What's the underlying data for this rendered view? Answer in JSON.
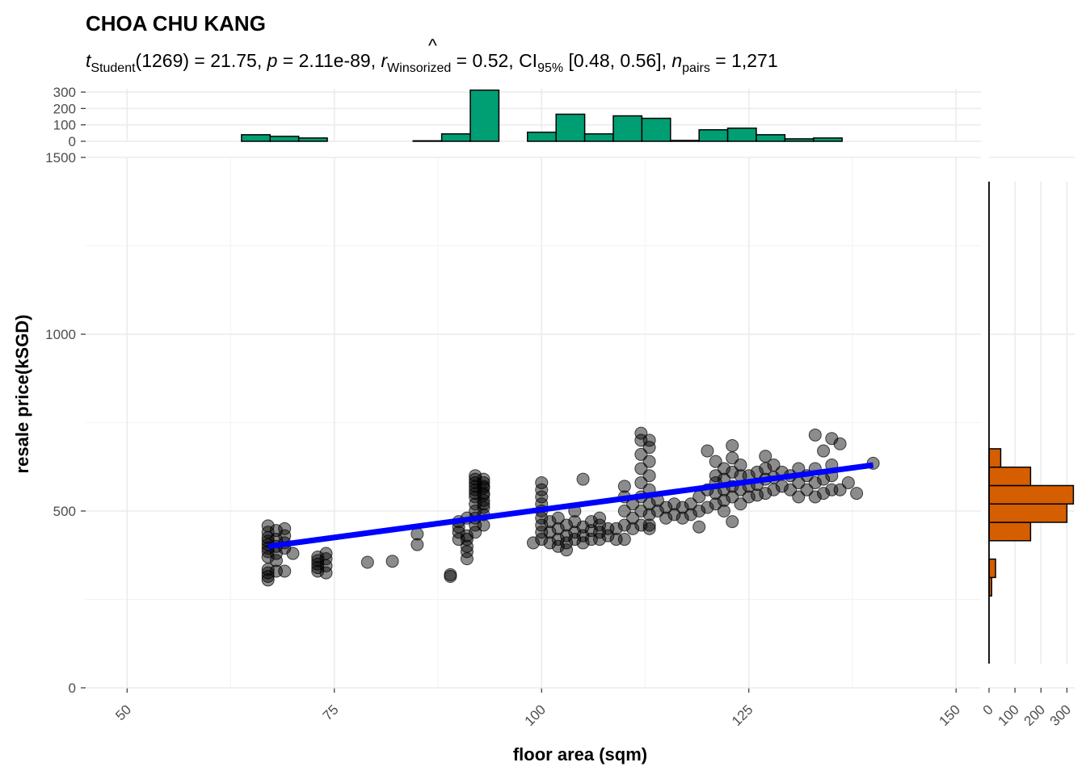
{
  "chart_data": {
    "type": "scatter",
    "title": "CHOA CHU KANG",
    "subtitle": {
      "t_label": "t",
      "t_sub": "Student",
      "df": "(1269)",
      "t_val": "21.75",
      "p_label": "p",
      "p_val": "2.11e-89",
      "r_label": "r",
      "r_sub": "Winsorized",
      "r_val": "0.52",
      "ci_label": "CI",
      "ci_sub": "95%",
      "ci_val": "[0.48, 0.56]",
      "n_label": "n",
      "n_sub": "pairs",
      "n_val": "1,271"
    },
    "xlabel": "floor area (sqm)",
    "ylabel": "resale price(kSGD)",
    "xlim": [
      45,
      153
    ],
    "ylim": [
      0,
      1500
    ],
    "x_ticks": [
      "50",
      "75",
      "100",
      "125",
      "150"
    ],
    "x_tick_values": [
      50,
      75,
      100,
      125,
      150
    ],
    "y_ticks": [
      "0",
      "500",
      "1000",
      "1500"
    ],
    "y_tick_values": [
      0,
      500,
      1000,
      1500
    ],
    "grid": true,
    "point_color": "#000000",
    "regression_line": {
      "color": "#0000ff",
      "x": [
        67,
        140
      ],
      "y": [
        400,
        630
      ]
    },
    "points": [
      {
        "x": 67,
        "y": 305
      },
      {
        "x": 67,
        "y": 315
      },
      {
        "x": 67,
        "y": 325
      },
      {
        "x": 67,
        "y": 335
      },
      {
        "x": 67,
        "y": 370
      },
      {
        "x": 67,
        "y": 385
      },
      {
        "x": 67,
        "y": 395
      },
      {
        "x": 67,
        "y": 405
      },
      {
        "x": 67,
        "y": 415
      },
      {
        "x": 67,
        "y": 425
      },
      {
        "x": 67,
        "y": 440
      },
      {
        "x": 67,
        "y": 458
      },
      {
        "x": 68,
        "y": 330
      },
      {
        "x": 68,
        "y": 360
      },
      {
        "x": 68,
        "y": 380
      },
      {
        "x": 68,
        "y": 400
      },
      {
        "x": 68,
        "y": 420
      },
      {
        "x": 68,
        "y": 445
      },
      {
        "x": 69,
        "y": 330
      },
      {
        "x": 69,
        "y": 395
      },
      {
        "x": 69,
        "y": 410
      },
      {
        "x": 69,
        "y": 430
      },
      {
        "x": 69,
        "y": 450
      },
      {
        "x": 70,
        "y": 380
      },
      {
        "x": 73,
        "y": 330
      },
      {
        "x": 73,
        "y": 340
      },
      {
        "x": 73,
        "y": 350
      },
      {
        "x": 73,
        "y": 360
      },
      {
        "x": 73,
        "y": 370
      },
      {
        "x": 74,
        "y": 325
      },
      {
        "x": 74,
        "y": 345
      },
      {
        "x": 74,
        "y": 365
      },
      {
        "x": 74,
        "y": 380
      },
      {
        "x": 79,
        "y": 355
      },
      {
        "x": 82,
        "y": 358
      },
      {
        "x": 85,
        "y": 405
      },
      {
        "x": 85,
        "y": 435
      },
      {
        "x": 89,
        "y": 315
      },
      {
        "x": 89,
        "y": 320
      },
      {
        "x": 90,
        "y": 420
      },
      {
        "x": 90,
        "y": 440
      },
      {
        "x": 90,
        "y": 455
      },
      {
        "x": 90,
        "y": 470
      },
      {
        "x": 91,
        "y": 400
      },
      {
        "x": 91,
        "y": 420
      },
      {
        "x": 91,
        "y": 430
      },
      {
        "x": 91,
        "y": 480
      },
      {
        "x": 91,
        "y": 365
      },
      {
        "x": 91,
        "y": 385
      },
      {
        "x": 92,
        "y": 440
      },
      {
        "x": 92,
        "y": 460
      },
      {
        "x": 92,
        "y": 480
      },
      {
        "x": 92,
        "y": 500
      },
      {
        "x": 92,
        "y": 520
      },
      {
        "x": 92,
        "y": 540
      },
      {
        "x": 92,
        "y": 560
      },
      {
        "x": 92,
        "y": 580
      },
      {
        "x": 92,
        "y": 600
      },
      {
        "x": 92,
        "y": 590
      },
      {
        "x": 92,
        "y": 570
      },
      {
        "x": 92,
        "y": 550
      },
      {
        "x": 93,
        "y": 460
      },
      {
        "x": 93,
        "y": 490
      },
      {
        "x": 93,
        "y": 510
      },
      {
        "x": 93,
        "y": 530
      },
      {
        "x": 93,
        "y": 550
      },
      {
        "x": 93,
        "y": 570
      },
      {
        "x": 93,
        "y": 590
      },
      {
        "x": 93,
        "y": 520
      },
      {
        "x": 93,
        "y": 545
      },
      {
        "x": 93,
        "y": 565
      },
      {
        "x": 93,
        "y": 580
      },
      {
        "x": 99,
        "y": 410
      },
      {
        "x": 100,
        "y": 420
      },
      {
        "x": 100,
        "y": 440
      },
      {
        "x": 100,
        "y": 460
      },
      {
        "x": 100,
        "y": 480
      },
      {
        "x": 100,
        "y": 500
      },
      {
        "x": 100,
        "y": 520
      },
      {
        "x": 100,
        "y": 540
      },
      {
        "x": 100,
        "y": 560
      },
      {
        "x": 100,
        "y": 580
      },
      {
        "x": 101,
        "y": 410
      },
      {
        "x": 101,
        "y": 440
      },
      {
        "x": 101,
        "y": 470
      },
      {
        "x": 102,
        "y": 400
      },
      {
        "x": 102,
        "y": 420
      },
      {
        "x": 102,
        "y": 450
      },
      {
        "x": 102,
        "y": 480
      },
      {
        "x": 103,
        "y": 390
      },
      {
        "x": 103,
        "y": 410
      },
      {
        "x": 103,
        "y": 430
      },
      {
        "x": 103,
        "y": 460
      },
      {
        "x": 104,
        "y": 420
      },
      {
        "x": 104,
        "y": 440
      },
      {
        "x": 104,
        "y": 470
      },
      {
        "x": 104,
        "y": 500
      },
      {
        "x": 105,
        "y": 410
      },
      {
        "x": 105,
        "y": 430
      },
      {
        "x": 105,
        "y": 455
      },
      {
        "x": 105,
        "y": 590
      },
      {
        "x": 106,
        "y": 420
      },
      {
        "x": 106,
        "y": 445
      },
      {
        "x": 106,
        "y": 470
      },
      {
        "x": 107,
        "y": 420
      },
      {
        "x": 107,
        "y": 440
      },
      {
        "x": 107,
        "y": 460
      },
      {
        "x": 107,
        "y": 480
      },
      {
        "x": 108,
        "y": 430
      },
      {
        "x": 108,
        "y": 450
      },
      {
        "x": 109,
        "y": 420
      },
      {
        "x": 109,
        "y": 450
      },
      {
        "x": 110,
        "y": 420
      },
      {
        "x": 110,
        "y": 460
      },
      {
        "x": 110,
        "y": 500
      },
      {
        "x": 110,
        "y": 540
      },
      {
        "x": 110,
        "y": 570
      },
      {
        "x": 111,
        "y": 450
      },
      {
        "x": 111,
        "y": 480
      },
      {
        "x": 111,
        "y": 520
      },
      {
        "x": 112,
        "y": 460
      },
      {
        "x": 112,
        "y": 500
      },
      {
        "x": 112,
        "y": 540
      },
      {
        "x": 112,
        "y": 580
      },
      {
        "x": 112,
        "y": 620
      },
      {
        "x": 112,
        "y": 660
      },
      {
        "x": 112,
        "y": 700
      },
      {
        "x": 112,
        "y": 720
      },
      {
        "x": 113,
        "y": 460
      },
      {
        "x": 113,
        "y": 490
      },
      {
        "x": 113,
        "y": 520
      },
      {
        "x": 113,
        "y": 560
      },
      {
        "x": 113,
        "y": 600
      },
      {
        "x": 113,
        "y": 640
      },
      {
        "x": 113,
        "y": 680
      },
      {
        "x": 113,
        "y": 700
      },
      {
        "x": 113,
        "y": 450
      },
      {
        "x": 114,
        "y": 500
      },
      {
        "x": 114,
        "y": 530
      },
      {
        "x": 115,
        "y": 480
      },
      {
        "x": 115,
        "y": 510
      },
      {
        "x": 116,
        "y": 490
      },
      {
        "x": 116,
        "y": 520
      },
      {
        "x": 117,
        "y": 480
      },
      {
        "x": 117,
        "y": 510
      },
      {
        "x": 118,
        "y": 490
      },
      {
        "x": 118,
        "y": 520
      },
      {
        "x": 119,
        "y": 455
      },
      {
        "x": 119,
        "y": 500
      },
      {
        "x": 119,
        "y": 540
      },
      {
        "x": 120,
        "y": 510
      },
      {
        "x": 120,
        "y": 560
      },
      {
        "x": 120,
        "y": 670
      },
      {
        "x": 121,
        "y": 520
      },
      {
        "x": 121,
        "y": 550
      },
      {
        "x": 121,
        "y": 580
      },
      {
        "x": 121,
        "y": 600
      },
      {
        "x": 121,
        "y": 640
      },
      {
        "x": 122,
        "y": 500
      },
      {
        "x": 122,
        "y": 530
      },
      {
        "x": 122,
        "y": 560
      },
      {
        "x": 122,
        "y": 590
      },
      {
        "x": 122,
        "y": 620
      },
      {
        "x": 123,
        "y": 470
      },
      {
        "x": 123,
        "y": 540
      },
      {
        "x": 123,
        "y": 570
      },
      {
        "x": 123,
        "y": 610
      },
      {
        "x": 123,
        "y": 650
      },
      {
        "x": 123,
        "y": 685
      },
      {
        "x": 124,
        "y": 520
      },
      {
        "x": 124,
        "y": 560
      },
      {
        "x": 124,
        "y": 600
      },
      {
        "x": 124,
        "y": 630
      },
      {
        "x": 125,
        "y": 540
      },
      {
        "x": 125,
        "y": 570
      },
      {
        "x": 125,
        "y": 600
      },
      {
        "x": 126,
        "y": 545
      },
      {
        "x": 126,
        "y": 575
      },
      {
        "x": 126,
        "y": 610
      },
      {
        "x": 127,
        "y": 550
      },
      {
        "x": 127,
        "y": 590
      },
      {
        "x": 127,
        "y": 620
      },
      {
        "x": 127,
        "y": 655
      },
      {
        "x": 128,
        "y": 560
      },
      {
        "x": 128,
        "y": 595
      },
      {
        "x": 128,
        "y": 630
      },
      {
        "x": 129,
        "y": 570
      },
      {
        "x": 129,
        "y": 610
      },
      {
        "x": 130,
        "y": 560
      },
      {
        "x": 130,
        "y": 600
      },
      {
        "x": 131,
        "y": 540
      },
      {
        "x": 131,
        "y": 580
      },
      {
        "x": 131,
        "y": 620
      },
      {
        "x": 132,
        "y": 560
      },
      {
        "x": 132,
        "y": 600
      },
      {
        "x": 133,
        "y": 540
      },
      {
        "x": 133,
        "y": 580
      },
      {
        "x": 133,
        "y": 620
      },
      {
        "x": 133,
        "y": 715
      },
      {
        "x": 134,
        "y": 550
      },
      {
        "x": 134,
        "y": 590
      },
      {
        "x": 134,
        "y": 670
      },
      {
        "x": 135,
        "y": 560
      },
      {
        "x": 135,
        "y": 600
      },
      {
        "x": 135,
        "y": 630
      },
      {
        "x": 135,
        "y": 705
      },
      {
        "x": 136,
        "y": 560
      },
      {
        "x": 136,
        "y": 690
      },
      {
        "x": 137,
        "y": 580
      },
      {
        "x": 138,
        "y": 550
      },
      {
        "x": 140,
        "y": 635
      }
    ],
    "x_histogram": {
      "color": "#009e73",
      "y_ticks": [
        "0",
        "100",
        "200",
        "300"
      ],
      "y_tick_values": [
        0,
        100,
        200,
        300
      ],
      "ylim": [
        0,
        320
      ],
      "bin_start": 50,
      "bin_width": 3.45,
      "counts": [
        0,
        0,
        0,
        0,
        40,
        30,
        20,
        0,
        0,
        0,
        3,
        45,
        312,
        0,
        55,
        165,
        45,
        155,
        140,
        5,
        70,
        80,
        40,
        15,
        20,
        0,
        0,
        0,
        0
      ]
    },
    "y_histogram": {
      "color": "#d55e00",
      "x_ticks": [
        "0",
        "100",
        "200",
        "300"
      ],
      "x_tick_values": [
        0,
        100,
        200,
        300
      ],
      "xlim": [
        0,
        330
      ],
      "bin_start": 0,
      "bin_width": 52,
      "counts": [
        0,
        0,
        0,
        0,
        0,
        10,
        25,
        0,
        160,
        300,
        325,
        160,
        45,
        0,
        0,
        0,
        0,
        0,
        0,
        0,
        0,
        0,
        0,
        0,
        0,
        0,
        0,
        0,
        0
      ]
    }
  }
}
